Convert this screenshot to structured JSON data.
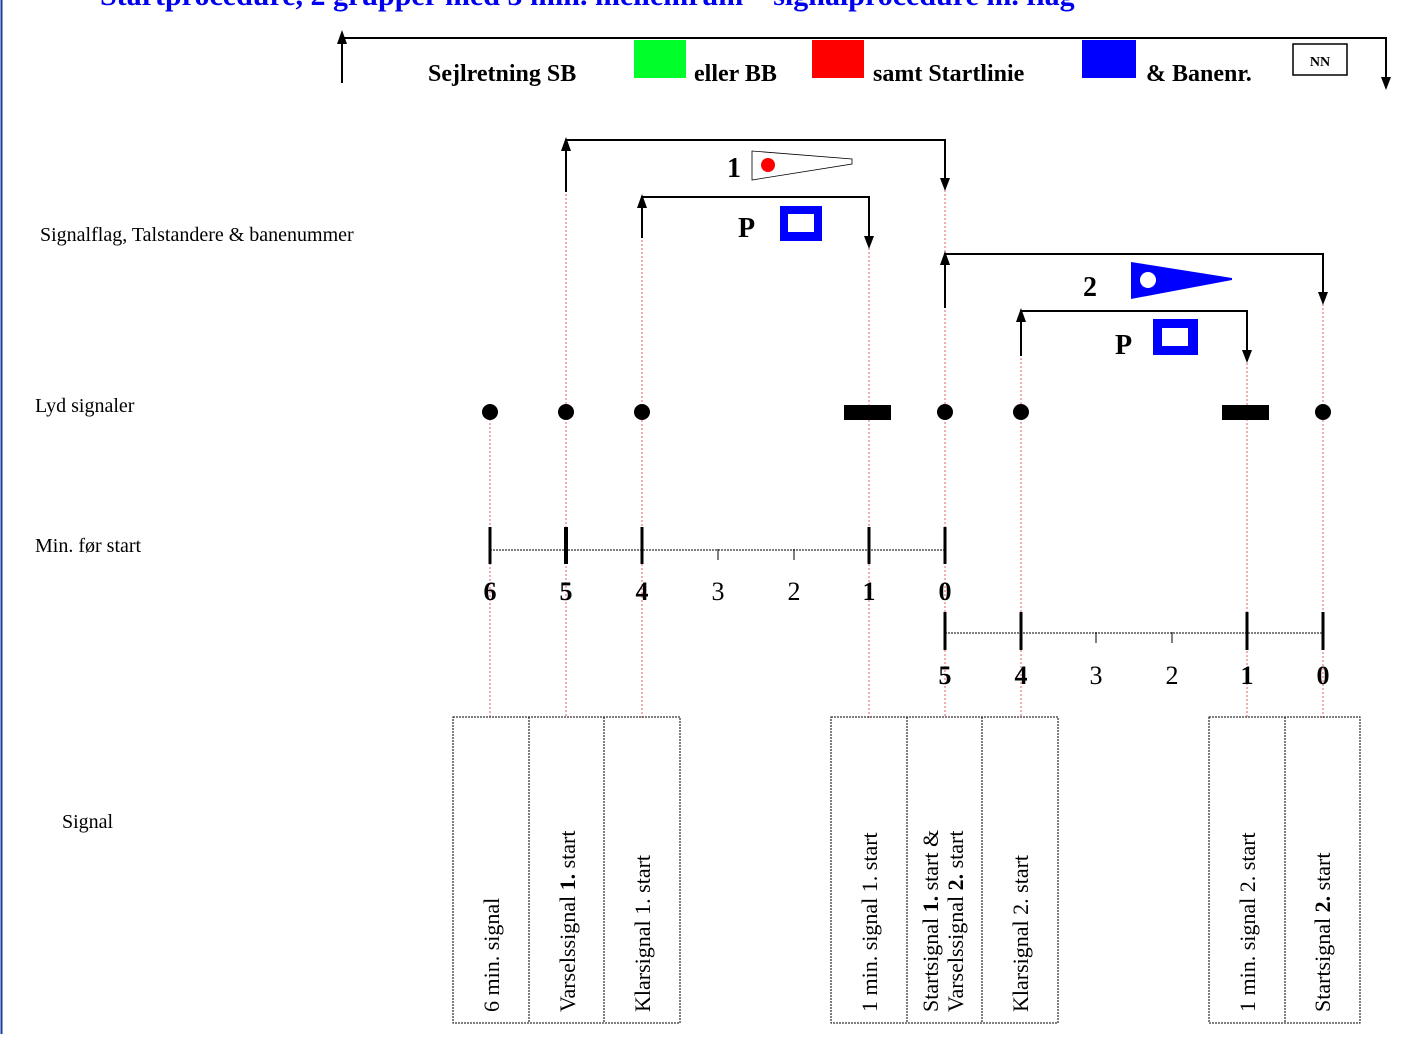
{
  "header": {
    "cut_title": "Startprocedure, 2 grupper med 5 min. mellemrum – signalprocedure m. flag",
    "sail_text_1": "Sejlretning SB",
    "sail_text_2": "eller BB",
    "sail_text_3": "samt Startlinie",
    "sail_text_4": "& Banenr.",
    "course_box": "NN"
  },
  "colors": {
    "starboard": "#00ff2a",
    "port": "#ff0000",
    "startline": "#0000ff",
    "dashed_guide": "#e06060",
    "left_border": "#1a3aa0"
  },
  "row_labels": {
    "flags": "Signalflag, Talstandere & banenummer",
    "sound": "Lyd signaler",
    "minutes": "Min. før start",
    "signal": "Signal"
  },
  "flags": {
    "group1_number": "1",
    "group1_prep": "P",
    "group2_number": "2",
    "group2_prep": "P",
    "group1_pennant_icon": "white-pennant-red-dot-icon",
    "group2_pennant_icon": "blue-pennant-white-dot-icon",
    "prep_flag_icon": "blue-p-flag-icon"
  },
  "timeline1": {
    "labels": [
      "6",
      "5",
      "4",
      "3",
      "2",
      "1",
      "0"
    ],
    "bold": [
      true,
      true,
      true,
      false,
      false,
      true,
      true
    ]
  },
  "timeline2": {
    "labels": [
      "5",
      "4",
      "3",
      "2",
      "1",
      "0"
    ],
    "bold": [
      true,
      true,
      false,
      false,
      true,
      true
    ]
  },
  "signals": [
    {
      "parts": [
        {
          "t": "6 min. signal",
          "b": false
        }
      ]
    },
    {
      "parts": [
        {
          "t": "Varselssignal ",
          "b": false
        },
        {
          "t": "1.",
          "b": true
        },
        {
          "t": " start",
          "b": false
        }
      ]
    },
    {
      "parts": [
        {
          "t": "Klarsignal 1. start",
          "b": false
        }
      ]
    },
    {
      "parts": [
        {
          "t": "1 min. signal 1. start",
          "b": false
        }
      ]
    },
    {
      "line1": [
        {
          "t": "Startsignal ",
          "b": false
        },
        {
          "t": "1.",
          "b": true
        },
        {
          "t": " start &",
          "b": false
        }
      ],
      "line2": [
        {
          "t": "Varselssignal ",
          "b": false
        },
        {
          "t": "2.",
          "b": true
        },
        {
          "t": " start",
          "b": false
        }
      ]
    },
    {
      "parts": [
        {
          "t": "Klarsignal 2. start",
          "b": false
        }
      ]
    },
    {
      "parts": [
        {
          "t": "1 min. signal 2. start",
          "b": false
        }
      ]
    },
    {
      "parts": [
        {
          "t": "Startsignal ",
          "b": false
        },
        {
          "t": "2.",
          "b": true
        },
        {
          "t": " start",
          "b": false
        }
      ]
    }
  ]
}
